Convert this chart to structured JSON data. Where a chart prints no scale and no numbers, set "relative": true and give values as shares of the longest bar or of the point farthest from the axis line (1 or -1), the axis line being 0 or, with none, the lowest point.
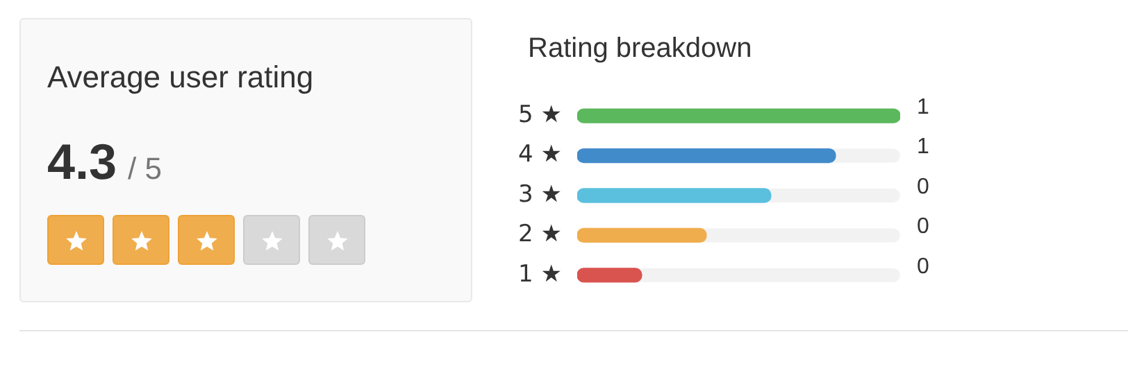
{
  "chart_data": [
    {
      "type": "other",
      "title": "Average user rating",
      "annotations": [
        "4.3",
        "/ 5"
      ]
    },
    {
      "type": "bar",
      "orientation": "horizontal",
      "relative": true,
      "title": "Rating breakdown",
      "categories": [
        "5 ★",
        "4 ★",
        "3 ★",
        "2 ★",
        "1 ★"
      ],
      "values": [
        1,
        0.8,
        0.6,
        0.4,
        0.2
      ],
      "colors": [
        "#5cb85c",
        "#428bca",
        "#5bc0de",
        "#f0ad4e",
        "#d9534f"
      ],
      "annotations": [
        "1",
        "1",
        "0",
        "0",
        "0"
      ]
    }
  ]
}
